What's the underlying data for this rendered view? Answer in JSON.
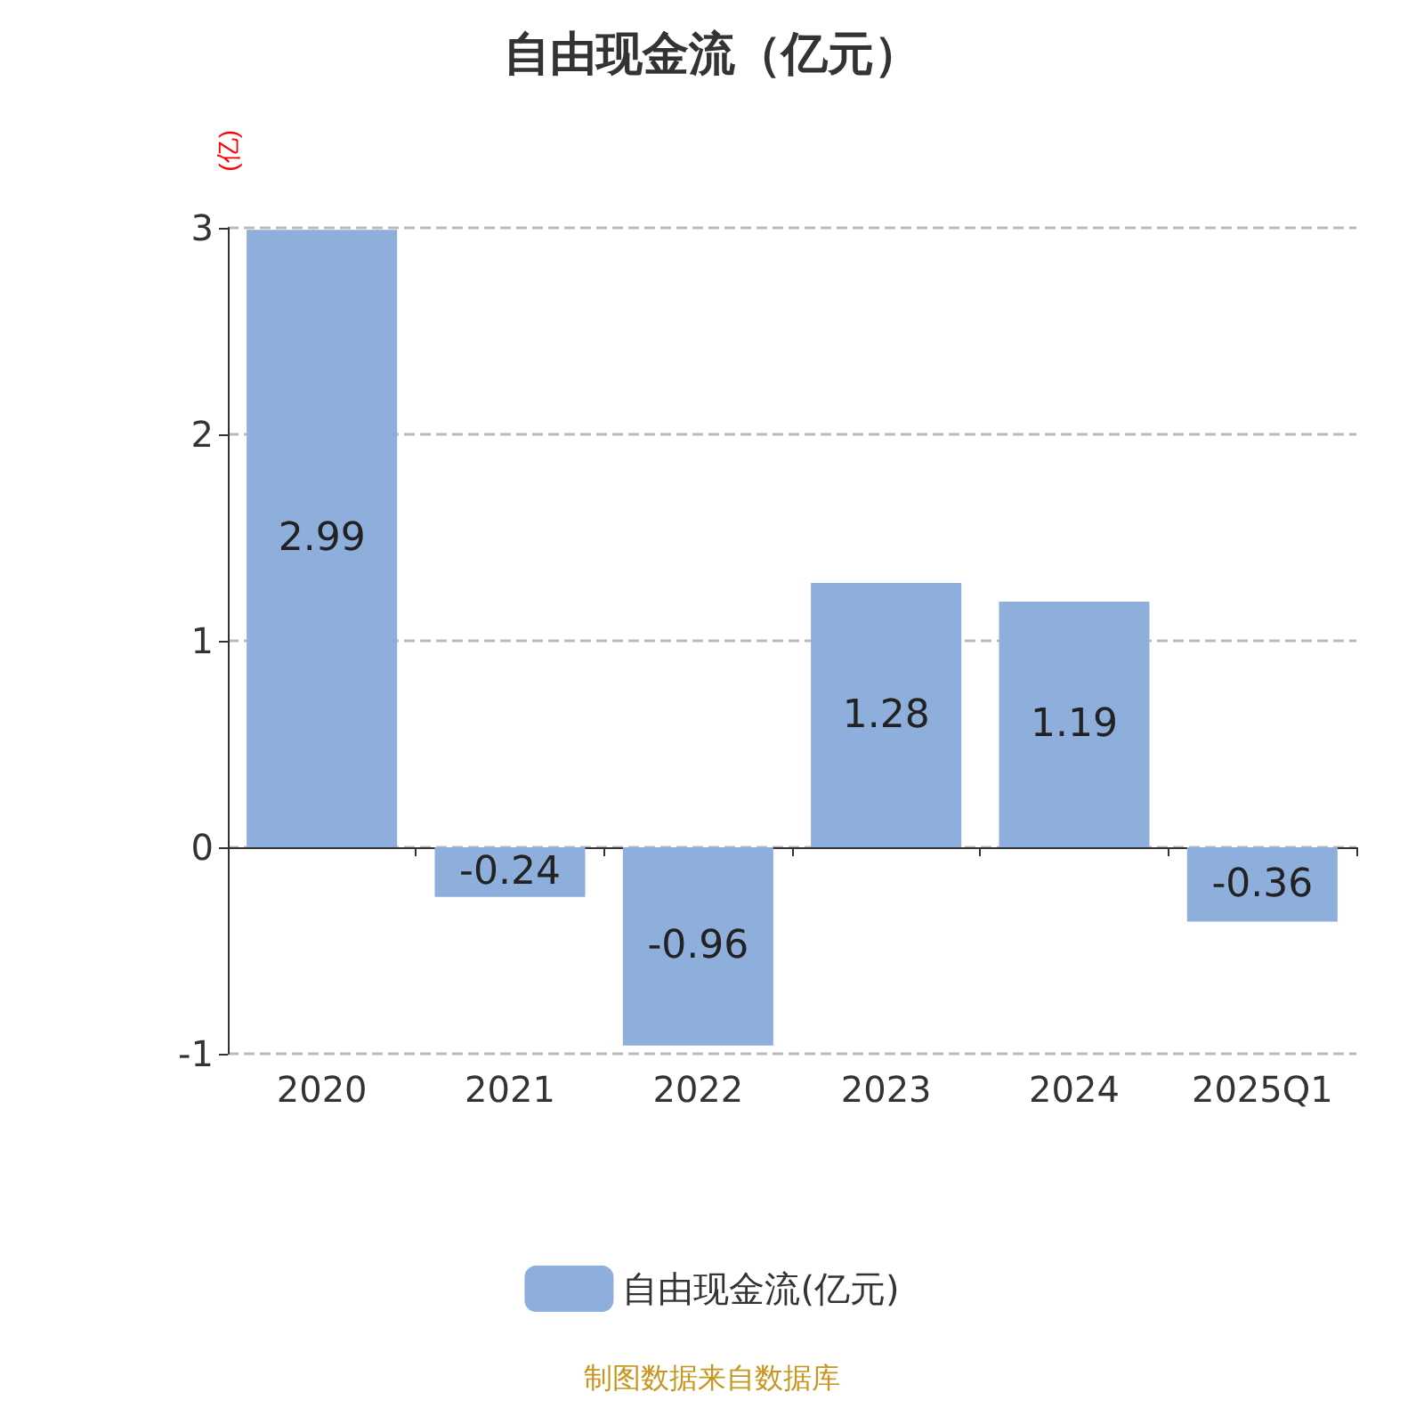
{
  "chart_data": {
    "type": "bar",
    "title": "自由现金流（亿元）",
    "ylabel": "(亿)",
    "categories": [
      "2020",
      "2021",
      "2022",
      "2023",
      "2024",
      "2025Q1"
    ],
    "series": [
      {
        "name": "自由现金流(亿元)",
        "color": "#8eaedb",
        "values": [
          2.99,
          -0.24,
          -0.96,
          1.28,
          1.19,
          -0.36
        ]
      }
    ],
    "ylim": [
      -1,
      3
    ],
    "yticks": [
      -1,
      0,
      1,
      2,
      3
    ],
    "grid": "y",
    "legend": "bottom",
    "data_labels": true,
    "annotations": [
      "制图数据来自数据库"
    ]
  }
}
